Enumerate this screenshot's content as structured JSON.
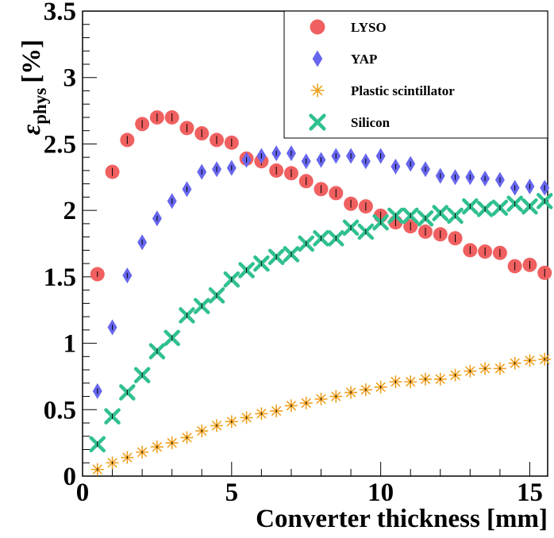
{
  "chart_data": {
    "type": "scatter",
    "title": "",
    "xlabel": "Converter thickness [mm]",
    "ylabel_symbol": "ε",
    "ylabel_subscript": "phys",
    "ylabel_unit": "[%]",
    "xlim": [
      0,
      15.6
    ],
    "ylim": [
      0,
      3.5
    ],
    "xticks": [
      0,
      5,
      10,
      15
    ],
    "xtick_labels": [
      "0",
      "5",
      "10",
      "15"
    ],
    "yticks": [
      0,
      0.5,
      1,
      1.5,
      2,
      2.5,
      3,
      3.5
    ],
    "ytick_labels": [
      "0",
      "0.5",
      "1",
      "1.5",
      "2",
      "2.5",
      "3",
      "3.5"
    ],
    "grid": false,
    "legend_position": "top-right",
    "x": [
      0.5,
      1.0,
      1.5,
      2.0,
      2.5,
      3.0,
      3.5,
      4.0,
      4.5,
      5.0,
      5.5,
      6.0,
      6.5,
      7.0,
      7.5,
      8.0,
      8.5,
      9.0,
      9.5,
      10.0,
      10.5,
      11.0,
      11.5,
      12.0,
      12.5,
      13.0,
      13.5,
      14.0,
      14.5,
      15.0,
      15.5
    ],
    "series": [
      {
        "name": "LYSO",
        "marker": "circle",
        "color": "#f06060",
        "values": [
          1.52,
          2.29,
          2.53,
          2.65,
          2.7,
          2.7,
          2.62,
          2.58,
          2.53,
          2.51,
          2.39,
          2.37,
          2.3,
          2.28,
          2.22,
          2.16,
          2.13,
          2.05,
          2.03,
          1.96,
          1.91,
          1.88,
          1.84,
          1.82,
          1.79,
          1.7,
          1.69,
          1.68,
          1.58,
          1.59,
          1.53
        ],
        "errors": [
          0.02,
          0.03,
          0.03,
          0.03,
          0.03,
          0.03,
          0.03,
          0.03,
          0.03,
          0.03,
          0.03,
          0.03,
          0.03,
          0.03,
          0.03,
          0.03,
          0.03,
          0.03,
          0.03,
          0.03,
          0.03,
          0.03,
          0.03,
          0.03,
          0.03,
          0.03,
          0.03,
          0.03,
          0.03,
          0.03,
          0.03
        ]
      },
      {
        "name": "YAP",
        "marker": "diamond",
        "color": "#6666ee",
        "values": [
          0.64,
          1.12,
          1.51,
          1.76,
          1.94,
          2.07,
          2.16,
          2.29,
          2.31,
          2.32,
          2.38,
          2.41,
          2.43,
          2.43,
          2.37,
          2.38,
          2.41,
          2.41,
          2.37,
          2.41,
          2.33,
          2.35,
          2.31,
          2.26,
          2.25,
          2.25,
          2.24,
          2.23,
          2.17,
          2.18,
          2.17
        ],
        "errors": [
          0.02,
          0.02,
          0.02,
          0.02,
          0.02,
          0.02,
          0.02,
          0.02,
          0.02,
          0.02,
          0.02,
          0.02,
          0.02,
          0.02,
          0.02,
          0.02,
          0.02,
          0.02,
          0.02,
          0.02,
          0.02,
          0.02,
          0.02,
          0.02,
          0.02,
          0.02,
          0.02,
          0.02,
          0.02,
          0.02,
          0.02
        ]
      },
      {
        "name": "Plastic scintillator",
        "marker": "asterisk",
        "color": "#f0a020",
        "values": [
          0.05,
          0.1,
          0.14,
          0.18,
          0.22,
          0.25,
          0.29,
          0.34,
          0.38,
          0.41,
          0.44,
          0.47,
          0.49,
          0.53,
          0.55,
          0.58,
          0.6,
          0.63,
          0.65,
          0.67,
          0.71,
          0.71,
          0.73,
          0.73,
          0.76,
          0.79,
          0.81,
          0.81,
          0.85,
          0.87,
          0.88
        ],
        "errors": [
          0.01,
          0.01,
          0.01,
          0.01,
          0.01,
          0.01,
          0.01,
          0.01,
          0.01,
          0.01,
          0.01,
          0.01,
          0.01,
          0.01,
          0.01,
          0.01,
          0.01,
          0.01,
          0.01,
          0.01,
          0.01,
          0.01,
          0.01,
          0.01,
          0.01,
          0.01,
          0.01,
          0.01,
          0.01,
          0.01,
          0.01
        ]
      },
      {
        "name": "Silicon",
        "marker": "cross-x",
        "color": "#30c090",
        "values": [
          0.24,
          0.45,
          0.63,
          0.76,
          0.94,
          1.04,
          1.21,
          1.28,
          1.36,
          1.48,
          1.55,
          1.6,
          1.65,
          1.67,
          1.75,
          1.79,
          1.79,
          1.87,
          1.84,
          1.91,
          1.96,
          1.96,
          1.94,
          1.98,
          1.96,
          2.03,
          2.01,
          2.02,
          2.05,
          2.03,
          2.07
        ],
        "errors": [
          0.02,
          0.02,
          0.02,
          0.02,
          0.02,
          0.02,
          0.02,
          0.02,
          0.02,
          0.02,
          0.02,
          0.02,
          0.02,
          0.02,
          0.02,
          0.02,
          0.02,
          0.02,
          0.02,
          0.02,
          0.02,
          0.02,
          0.02,
          0.02,
          0.02,
          0.02,
          0.02,
          0.02,
          0.02,
          0.02,
          0.02
        ]
      }
    ]
  }
}
